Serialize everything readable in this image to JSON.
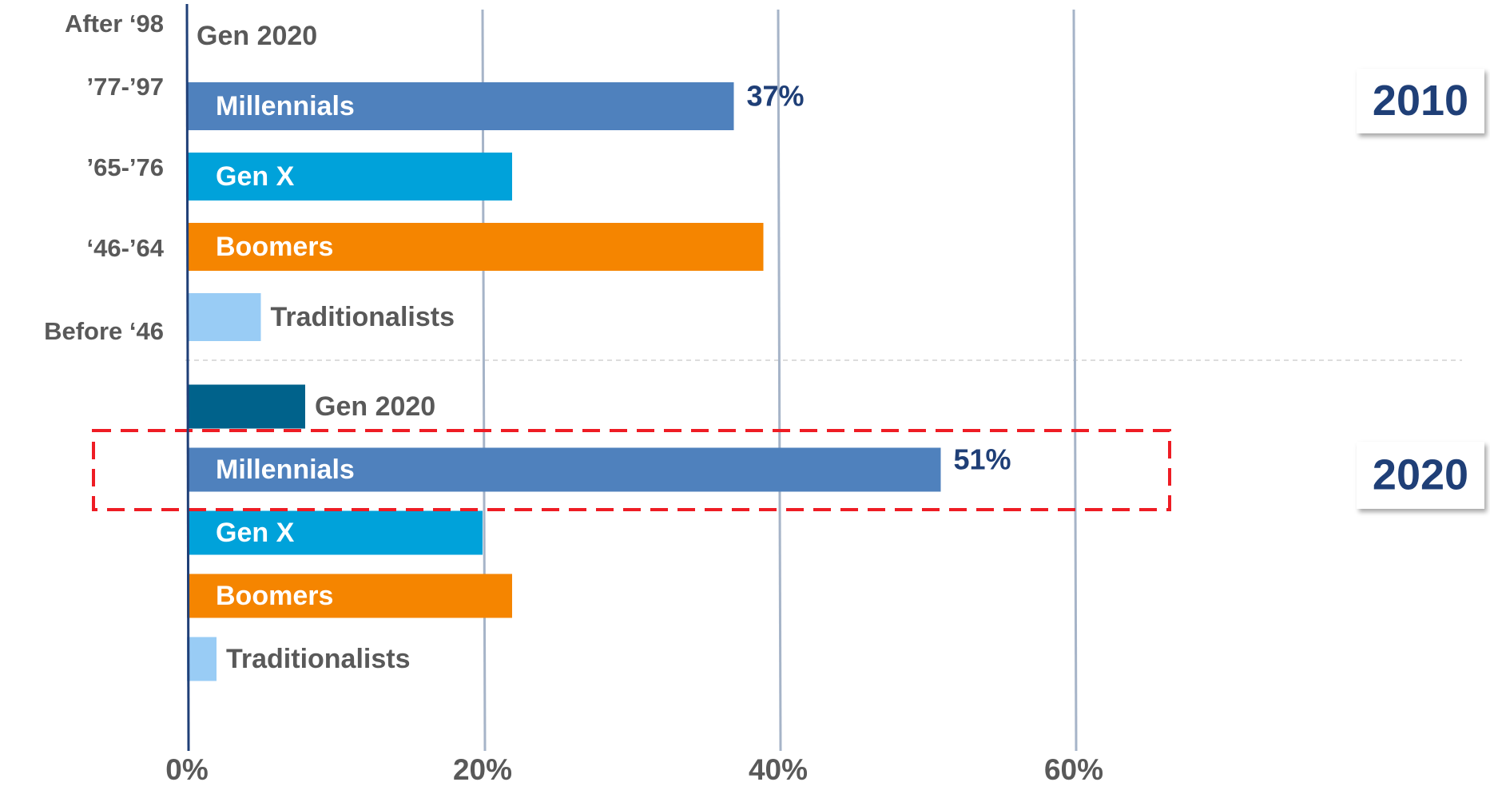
{
  "chart_data": {
    "type": "bar",
    "orientation": "horizontal",
    "birth_years": [
      "After ‘98",
      "’77-’97",
      "’65-’76",
      "‘46-’64",
      "Before ‘46"
    ],
    "groups": [
      {
        "name": "2010",
        "categories": [
          "Gen 2020",
          "Millennials",
          "Gen X",
          "Boomers",
          "Traditionalists"
        ],
        "values": [
          0,
          37,
          22,
          39,
          5
        ],
        "value_labels": [
          null,
          "37%",
          null,
          null,
          null
        ]
      },
      {
        "name": "2020",
        "categories": [
          "Gen 2020",
          "Millennials",
          "Gen X",
          "Boomers",
          "Traditionalists"
        ],
        "values": [
          8,
          51,
          20,
          22,
          2
        ],
        "value_labels": [
          null,
          "51%",
          null,
          null,
          null
        ]
      }
    ],
    "colors": [
      "#00628b",
      "#4f81bd",
      "#00a2da",
      "#f58500",
      "#99ccf5"
    ],
    "xlim": [
      0,
      80
    ],
    "xticks": [
      {
        "value": 0,
        "label": "0%"
      },
      {
        "value": 20,
        "label": "20%"
      },
      {
        "value": 40,
        "label": "40%"
      },
      {
        "value": 60,
        "label": "60%"
      }
    ],
    "grid": true
  }
}
